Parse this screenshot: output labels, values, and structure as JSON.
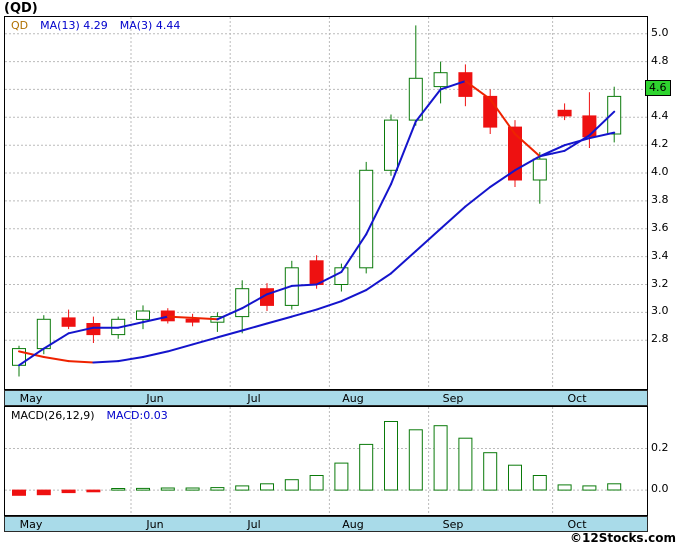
{
  "page": {
    "title": "(QD)",
    "copyright": "©12Stocks.com"
  },
  "colors": {
    "up": "#0a7a0a",
    "down": "#ee1111",
    "ma_rising": "#1414cc",
    "ma_falling": "#ee2200",
    "grid": "#bbbbbb",
    "band_bg": "#a9dbe9",
    "price_tag_bg": "#2fd42f",
    "legend_symbol": "#b07000",
    "legend_value": "#0000cc"
  },
  "chart_data": [
    {
      "type": "candlestick",
      "symbol": "QD",
      "legend": [
        "MA(13) 4.29",
        "MA(3) 4.44"
      ],
      "ylim": [
        2.45,
        5.12
      ],
      "yticks": [
        5.0,
        4.8,
        4.6,
        4.4,
        4.2,
        4.0,
        3.8,
        3.6,
        3.4,
        3.2,
        3.0,
        2.8
      ],
      "price_label": "4.6",
      "timeframe_months": [
        {
          "label": "May",
          "start": 0
        },
        {
          "label": "Jun",
          "start": 5
        },
        {
          "label": "Jul",
          "start": 9
        },
        {
          "label": "Aug",
          "start": 13
        },
        {
          "label": "Sep",
          "start": 17
        },
        {
          "label": "Oct",
          "start": 22
        }
      ],
      "candles": [
        [
          2.62,
          2.76,
          2.54,
          2.74
        ],
        [
          2.74,
          2.98,
          2.7,
          2.95
        ],
        [
          2.96,
          3.02,
          2.88,
          2.9
        ],
        [
          2.92,
          2.97,
          2.78,
          2.84
        ],
        [
          2.84,
          2.97,
          2.81,
          2.95
        ],
        [
          2.95,
          3.05,
          2.88,
          3.01
        ],
        [
          3.01,
          3.03,
          2.92,
          2.94
        ],
        [
          2.95,
          2.99,
          2.9,
          2.93
        ],
        [
          2.93,
          3.0,
          2.86,
          2.97
        ],
        [
          2.97,
          3.23,
          2.85,
          3.17
        ],
        [
          3.17,
          3.21,
          3.01,
          3.05
        ],
        [
          3.05,
          3.37,
          3.02,
          3.32
        ],
        [
          3.37,
          3.41,
          3.17,
          3.2
        ],
        [
          3.2,
          3.35,
          3.15,
          3.32
        ],
        [
          3.32,
          4.08,
          3.28,
          4.02
        ],
        [
          4.02,
          4.42,
          3.98,
          4.38
        ],
        [
          4.38,
          5.06,
          4.34,
          4.68
        ],
        [
          4.62,
          4.8,
          4.5,
          4.72
        ],
        [
          4.72,
          4.78,
          4.48,
          4.55
        ],
        [
          4.55,
          4.6,
          4.28,
          4.33
        ],
        [
          4.33,
          4.38,
          3.9,
          3.95
        ],
        [
          3.95,
          4.15,
          3.78,
          4.1
        ],
        [
          4.45,
          4.5,
          4.38,
          4.41
        ],
        [
          4.41,
          4.58,
          4.18,
          4.26
        ],
        [
          4.28,
          4.62,
          4.22,
          4.55
        ]
      ],
      "series": [
        {
          "name": "MA(13)",
          "last": 4.29,
          "values": [
            2.72,
            2.68,
            2.65,
            2.64,
            2.65,
            2.68,
            2.72,
            2.77,
            2.82,
            2.87,
            2.92,
            2.97,
            3.02,
            3.08,
            3.16,
            3.28,
            3.44,
            3.6,
            3.76,
            3.9,
            4.02,
            4.12,
            4.2,
            4.25,
            4.29
          ]
        },
        {
          "name": "MA(3)",
          "last": 4.44,
          "values": [
            2.62,
            2.74,
            2.85,
            2.89,
            2.89,
            2.93,
            2.97,
            2.96,
            2.95,
            3.03,
            3.13,
            3.19,
            3.2,
            3.29,
            3.56,
            3.92,
            4.37,
            4.6,
            4.66,
            4.53,
            4.28,
            4.12,
            4.16,
            4.27,
            4.44
          ]
        }
      ]
    },
    {
      "type": "bar",
      "title": "MACD(26,12,9)",
      "value_label": "MACD:0.03",
      "ylim": [
        -0.12,
        0.4
      ],
      "yticks": [
        0.2,
        0.0
      ],
      "values": [
        -0.025,
        -0.022,
        -0.012,
        -0.008,
        0.006,
        0.008,
        0.01,
        0.01,
        0.012,
        0.02,
        0.03,
        0.05,
        0.07,
        0.13,
        0.22,
        0.33,
        0.29,
        0.31,
        0.25,
        0.18,
        0.12,
        0.07,
        0.025,
        0.02,
        0.03
      ]
    }
  ]
}
